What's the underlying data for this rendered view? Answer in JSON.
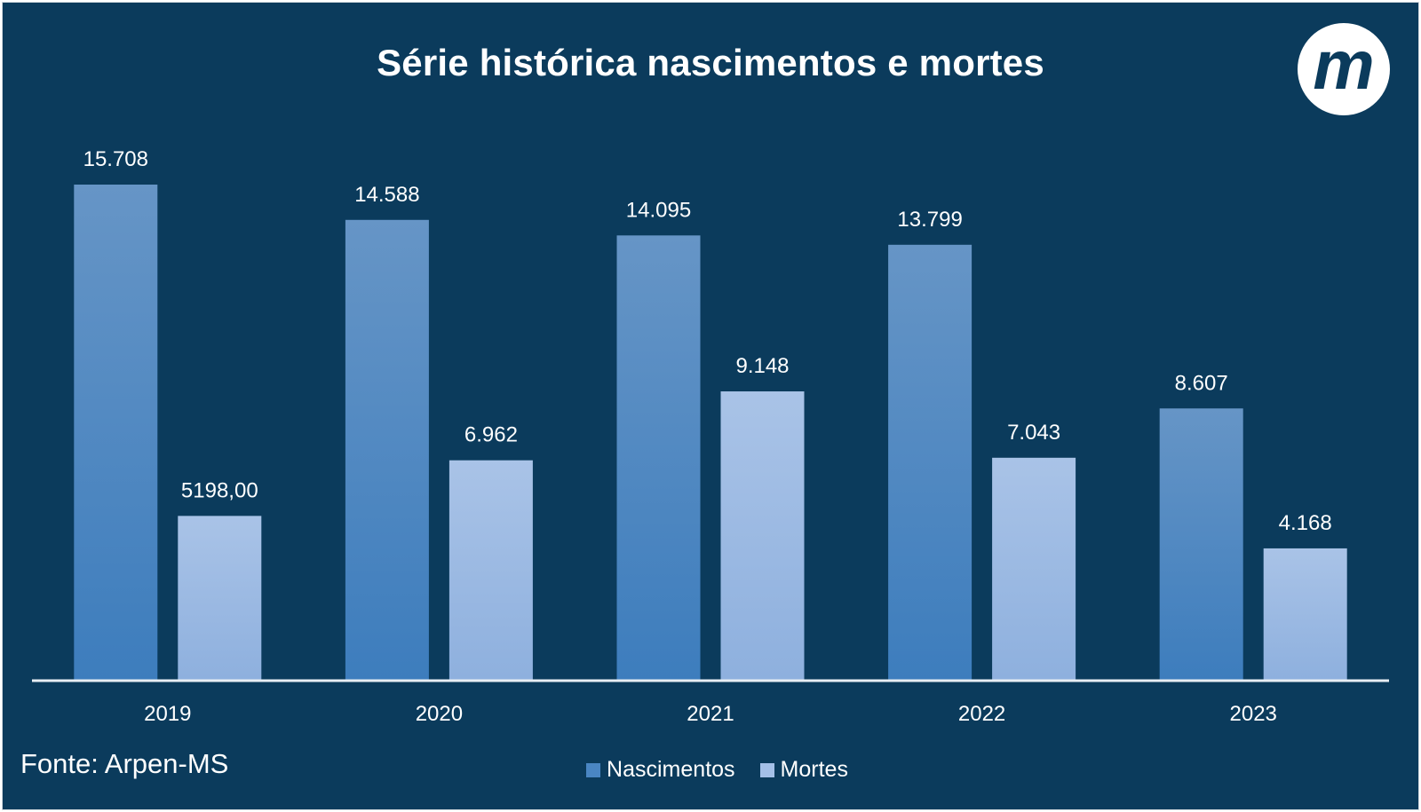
{
  "chart_data": {
    "type": "bar",
    "title": "Série histórica nascimentos e mortes",
    "categories": [
      "2019",
      "2020",
      "2021",
      "2022",
      "2023"
    ],
    "series": [
      {
        "name": "Nascimentos",
        "values": [
          15708,
          14588,
          14095,
          13799,
          8607
        ],
        "labels": [
          "15.708",
          "14.588",
          "14.095",
          "13.799",
          "8.607"
        ],
        "color": "#4a86c3"
      },
      {
        "name": "Mortes",
        "values": [
          5198,
          6962,
          9148,
          7043,
          4168
        ],
        "labels": [
          "5198,00",
          "6.962",
          "9.148",
          "7.043",
          "4.168"
        ],
        "color": "#a4c0e8"
      }
    ],
    "ylim": [
      0,
      15708
    ],
    "grid": false,
    "legend_position": "bottom"
  },
  "source": "Fonte: Arpen-MS",
  "logo": {
    "icon": "m-logo-icon",
    "letter": "m"
  },
  "colors": {
    "background": "#0b3b5c",
    "axis": "#e8eef4",
    "text": "#ffffff"
  }
}
